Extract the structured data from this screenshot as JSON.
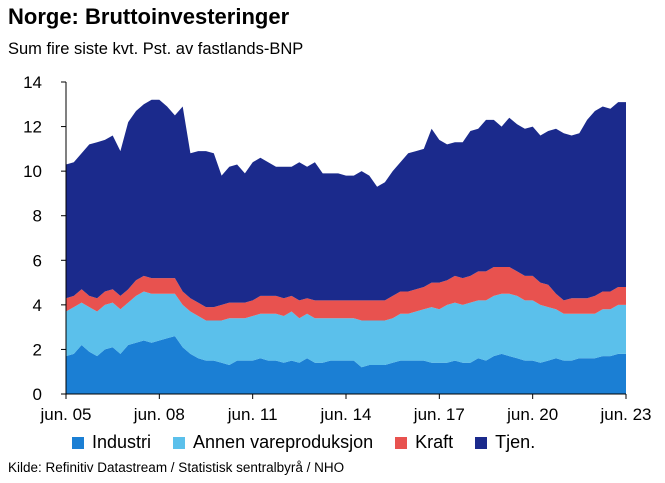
{
  "chart_data": {
    "type": "area",
    "title": "Norge:  Bruttoinvesteringer",
    "subtitle": "Sum fire siste kvt. Pst. av fastlands-BNP",
    "source": "Kilde: Refinitiv Datastream / Statistisk sentralbyrå / NHO",
    "stacked": true,
    "ylim": [
      0,
      14
    ],
    "yticks": [
      "0",
      "2",
      "4",
      "6",
      "8",
      "10",
      "12",
      "14"
    ],
    "xlim": [
      2005.0,
      2023.0
    ],
    "xtick_labels": [
      "jun. 05",
      "jun. 08",
      "jun. 11",
      "jun. 14",
      "jun. 17",
      "jun. 20",
      "jun. 23"
    ],
    "xtick_positions": [
      2005.0,
      2008.0,
      2011.0,
      2014.0,
      2017.0,
      2020.0,
      2023.0
    ],
    "grid": false,
    "legend_position": "bottom",
    "x": [
      2005.0,
      2005.25,
      2005.5,
      2005.75,
      2006.0,
      2006.25,
      2006.5,
      2006.75,
      2007.0,
      2007.25,
      2007.5,
      2007.75,
      2008.0,
      2008.25,
      2008.5,
      2008.75,
      2009.0,
      2009.25,
      2009.5,
      2009.75,
      2010.0,
      2010.25,
      2010.5,
      2010.75,
      2011.0,
      2011.25,
      2011.5,
      2011.75,
      2012.0,
      2012.25,
      2012.5,
      2012.75,
      2013.0,
      2013.25,
      2013.5,
      2013.75,
      2014.0,
      2014.25,
      2014.5,
      2014.75,
      2015.0,
      2015.25,
      2015.5,
      2015.75,
      2016.0,
      2016.25,
      2016.5,
      2016.75,
      2017.0,
      2017.25,
      2017.5,
      2017.75,
      2018.0,
      2018.25,
      2018.5,
      2018.75,
      2019.0,
      2019.25,
      2019.5,
      2019.75,
      2020.0,
      2020.25,
      2020.5,
      2020.75,
      2021.0,
      2021.25,
      2021.5,
      2021.75,
      2022.0,
      2022.25,
      2022.5,
      2022.75,
      2023.0
    ],
    "series": [
      {
        "name": "Industri",
        "color": "#1b7fd4",
        "values": [
          1.7,
          1.8,
          2.2,
          1.9,
          1.7,
          2.0,
          2.1,
          1.8,
          2.2,
          2.3,
          2.4,
          2.3,
          2.4,
          2.5,
          2.6,
          2.1,
          1.8,
          1.6,
          1.5,
          1.5,
          1.4,
          1.3,
          1.5,
          1.5,
          1.5,
          1.6,
          1.5,
          1.5,
          1.4,
          1.5,
          1.4,
          1.6,
          1.4,
          1.4,
          1.5,
          1.5,
          1.5,
          1.5,
          1.2,
          1.3,
          1.3,
          1.3,
          1.4,
          1.5,
          1.5,
          1.5,
          1.5,
          1.4,
          1.4,
          1.4,
          1.5,
          1.4,
          1.4,
          1.6,
          1.5,
          1.7,
          1.8,
          1.7,
          1.6,
          1.5,
          1.5,
          1.4,
          1.5,
          1.6,
          1.5,
          1.5,
          1.6,
          1.6,
          1.6,
          1.7,
          1.7,
          1.8,
          1.8
        ]
      },
      {
        "name": "Annen vareproduksjon",
        "color": "#5bc0eb",
        "values": [
          2.0,
          2.1,
          1.9,
          2.0,
          2.0,
          2.0,
          2.0,
          2.0,
          1.9,
          2.1,
          2.2,
          2.2,
          2.1,
          2.0,
          1.9,
          1.9,
          1.9,
          1.9,
          1.8,
          1.8,
          1.9,
          2.1,
          1.9,
          1.9,
          2.0,
          2.0,
          2.1,
          2.1,
          2.1,
          2.2,
          2.0,
          2.0,
          2.0,
          2.0,
          1.9,
          1.9,
          1.9,
          1.9,
          2.1,
          2.0,
          2.0,
          2.0,
          2.0,
          2.1,
          2.1,
          2.2,
          2.3,
          2.5,
          2.4,
          2.6,
          2.6,
          2.6,
          2.7,
          2.6,
          2.7,
          2.7,
          2.7,
          2.8,
          2.8,
          2.7,
          2.7,
          2.6,
          2.4,
          2.2,
          2.1,
          2.1,
          2.0,
          2.0,
          2.0,
          2.1,
          2.1,
          2.2,
          2.2
        ]
      },
      {
        "name": "Kraft",
        "color": "#e8524f",
        "values": [
          0.6,
          0.5,
          0.6,
          0.5,
          0.6,
          0.6,
          0.6,
          0.6,
          0.6,
          0.7,
          0.7,
          0.7,
          0.7,
          0.7,
          0.7,
          0.6,
          0.6,
          0.6,
          0.6,
          0.6,
          0.7,
          0.7,
          0.7,
          0.7,
          0.7,
          0.8,
          0.8,
          0.8,
          0.8,
          0.7,
          0.8,
          0.7,
          0.8,
          0.8,
          0.8,
          0.8,
          0.8,
          0.8,
          0.9,
          0.9,
          0.9,
          0.9,
          1.0,
          1.0,
          1.0,
          1.0,
          1.0,
          1.1,
          1.2,
          1.1,
          1.2,
          1.2,
          1.2,
          1.3,
          1.3,
          1.3,
          1.2,
          1.2,
          1.1,
          1.1,
          1.1,
          1.0,
          1.0,
          0.7,
          0.6,
          0.7,
          0.7,
          0.7,
          0.8,
          0.8,
          0.8,
          0.8,
          0.8
        ]
      },
      {
        "name": "Tjen.",
        "color": "#1b2a8c",
        "values": [
          6.0,
          6.0,
          6.1,
          6.8,
          7.0,
          6.8,
          6.9,
          6.5,
          7.5,
          7.6,
          7.7,
          8.0,
          8.0,
          7.7,
          7.3,
          8.3,
          6.5,
          6.8,
          7.0,
          6.9,
          5.8,
          6.1,
          6.2,
          5.8,
          6.2,
          6.2,
          6.0,
          5.8,
          5.9,
          5.8,
          6.2,
          5.9,
          6.2,
          5.7,
          5.7,
          5.7,
          5.6,
          5.6,
          5.8,
          5.6,
          5.1,
          5.3,
          5.6,
          5.8,
          6.2,
          6.2,
          6.2,
          6.9,
          6.4,
          6.1,
          6.0,
          6.1,
          6.5,
          6.4,
          6.8,
          6.6,
          6.3,
          6.7,
          6.6,
          6.6,
          6.7,
          6.6,
          6.9,
          7.4,
          7.5,
          7.3,
          7.4,
          8.0,
          8.3,
          8.3,
          8.2,
          8.3,
          8.3
        ]
      }
    ]
  }
}
